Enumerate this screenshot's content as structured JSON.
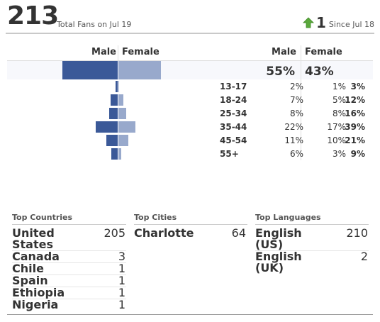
{
  "summary": {
    "total_fans": "213",
    "total_label": "Total Fans on Jul 19",
    "change": "1",
    "change_label": "Since Jul 18",
    "change_direction": "up",
    "up_color": "#5aa83c"
  },
  "demographics": {
    "headers": {
      "male_left": "Male",
      "female_left": "Female",
      "male_right": "Male",
      "female_right": "Female"
    },
    "total": {
      "male_pct": "55%",
      "female_pct": "43%"
    },
    "male_color": "#3b5998",
    "female_color": "#98a9cc",
    "age_groups": [
      {
        "label": "13-17",
        "male": "2%",
        "female": "1%",
        "total": "3%"
      },
      {
        "label": "18-24",
        "male": "7%",
        "female": "5%",
        "total": "12%"
      },
      {
        "label": "25-34",
        "male": "8%",
        "female": "8%",
        "total": "16%"
      },
      {
        "label": "35-44",
        "male": "22%",
        "female": "17%",
        "total": "39%"
      },
      {
        "label": "45-54",
        "male": "11%",
        "female": "10%",
        "total": "21%"
      },
      {
        "label": "55+",
        "male": "6%",
        "female": "3%",
        "total": "9%"
      }
    ]
  },
  "top_countries": {
    "title": "Top Countries",
    "items": [
      {
        "name": "United States",
        "value": "205"
      },
      {
        "name": "Canada",
        "value": "3"
      },
      {
        "name": "Chile",
        "value": "1"
      },
      {
        "name": "Spain",
        "value": "1"
      },
      {
        "name": "Ethiopia",
        "value": "1"
      },
      {
        "name": "Nigeria",
        "value": "1"
      }
    ]
  },
  "top_cities": {
    "title": "Top Cities",
    "items": [
      {
        "name": "Charlotte",
        "value": "64"
      }
    ]
  },
  "top_languages": {
    "title": "Top Languages",
    "items": [
      {
        "name": "English (US)",
        "value": "210"
      },
      {
        "name": "English (UK)",
        "value": "2"
      }
    ]
  }
}
